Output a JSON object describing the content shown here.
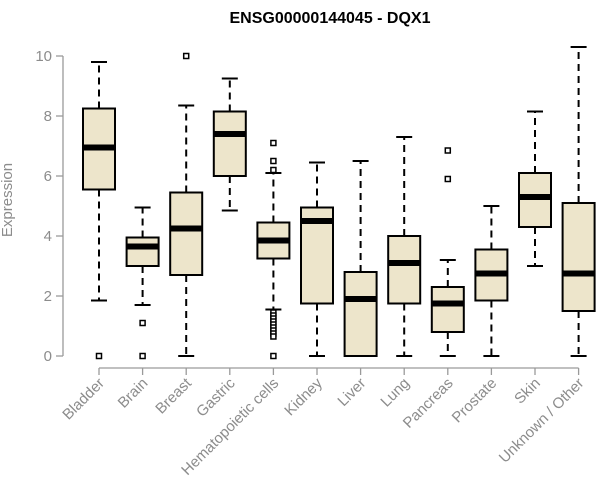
{
  "chart_data": {
    "type": "boxplot",
    "title": "ENSG00000144045 - DQX1",
    "xlabel": "",
    "ylabel": "Expression",
    "ylim": [
      0,
      10.5
    ],
    "yticks": [
      0,
      2,
      4,
      6,
      8,
      10
    ],
    "box_color": "#ede5cb",
    "categories": [
      "Bladder",
      "Brain",
      "Breast",
      "Gastric",
      "Hematopoietic cells",
      "Kidney",
      "Liver",
      "Lung",
      "Pancreas",
      "Prostate",
      "Skin",
      "Unknown / Other"
    ],
    "boxes": [
      {
        "name": "Bladder",
        "min": 1.85,
        "q1": 5.55,
        "median": 6.95,
        "q3": 8.25,
        "max": 9.8,
        "outliers": [
          0
        ]
      },
      {
        "name": "Brain",
        "min": 1.7,
        "q1": 3.0,
        "median": 3.65,
        "q3": 3.95,
        "max": 4.95,
        "outliers": [
          1.1,
          0
        ]
      },
      {
        "name": "Breast",
        "min": 0,
        "q1": 2.7,
        "median": 4.25,
        "q3": 5.45,
        "max": 8.35,
        "outliers": [
          10.0
        ]
      },
      {
        "name": "Gastric",
        "min": 4.85,
        "q1": 6.0,
        "median": 7.4,
        "q3": 8.15,
        "max": 9.25,
        "outliers": []
      },
      {
        "name": "Hematopoietic cells",
        "min": 1.55,
        "q1": 3.25,
        "median": 3.85,
        "q3": 4.45,
        "max": 6.1,
        "outliers": [
          7.1,
          6.5,
          6.2,
          1.45,
          1.35,
          1.25,
          1.15,
          1.05,
          0.95,
          0.85,
          0.75,
          0.65,
          0
        ]
      },
      {
        "name": "Kidney",
        "min": 0,
        "q1": 1.75,
        "median": 4.5,
        "q3": 4.95,
        "max": 6.45,
        "outliers": []
      },
      {
        "name": "Liver",
        "min": 0,
        "q1": 0,
        "median": 1.9,
        "q3": 2.8,
        "max": 6.5,
        "outliers": []
      },
      {
        "name": "Lung",
        "min": 0,
        "q1": 1.75,
        "median": 3.1,
        "q3": 4.0,
        "max": 7.3,
        "outliers": []
      },
      {
        "name": "Pancreas",
        "min": 0,
        "q1": 0.8,
        "median": 1.75,
        "q3": 2.3,
        "max": 3.2,
        "outliers": [
          6.85,
          5.9
        ]
      },
      {
        "name": "Prostate",
        "min": 0,
        "q1": 1.85,
        "median": 2.75,
        "q3": 3.55,
        "max": 5.0,
        "outliers": []
      },
      {
        "name": "Skin",
        "min": 3.0,
        "q1": 4.3,
        "median": 5.3,
        "q3": 6.1,
        "max": 8.15,
        "outliers": []
      },
      {
        "name": "Unknown / Other",
        "min": 0,
        "q1": 1.5,
        "median": 2.75,
        "q3": 5.1,
        "max": 10.3,
        "outliers": []
      }
    ]
  }
}
